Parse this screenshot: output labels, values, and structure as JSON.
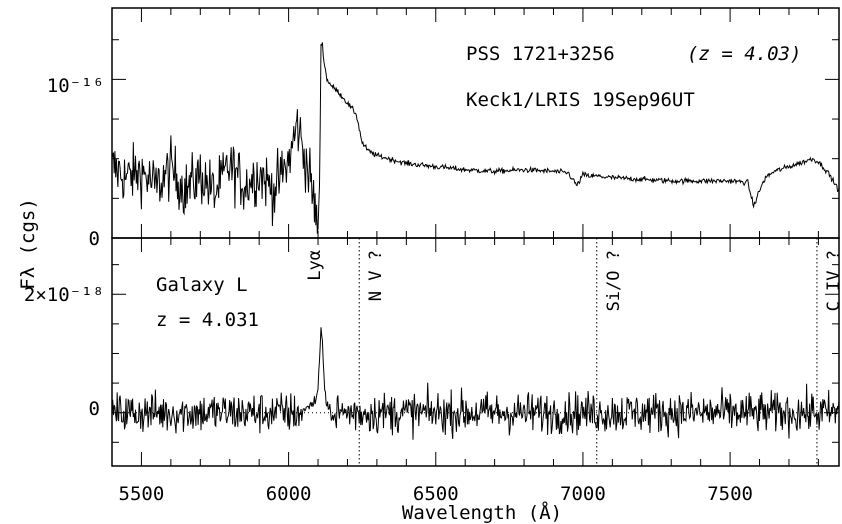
{
  "chart_data": [
    {
      "type": "line",
      "panel": "top",
      "title_line1": "PSS 1721+3256",
      "title_line2": "(z = 4.03)",
      "subtitle": "Keck1/LRIS 19Sep96UT",
      "ylabel": "Fλ (cgs)",
      "y_ticks": [
        {
          "value": 0,
          "label": "0"
        },
        {
          "value": 1,
          "label": "10⁻¹⁶"
        }
      ],
      "ylim": [
        0,
        1.45
      ],
      "xlim": [
        5400,
        7870
      ],
      "series": [
        {
          "x": [
            5400,
            5450,
            5500,
            5550,
            5600,
            5650,
            5700,
            5750,
            5800,
            5850,
            5900,
            5950,
            6000,
            6030,
            6050,
            6070,
            6085,
            6100,
            6106,
            6110,
            6115,
            6120,
            6130,
            6150,
            6170,
            6200,
            6230,
            6250,
            6270,
            6300,
            6400,
            6500,
            6600,
            6700,
            6800,
            6900,
            6950,
            6980,
            7000,
            7020,
            7050,
            7100,
            7200,
            7300,
            7400,
            7500,
            7560,
            7580,
            7600,
            7620,
            7650,
            7700,
            7750,
            7780,
            7800,
            7830,
            7870
          ],
          "y": [
            0.45,
            0.38,
            0.42,
            0.32,
            0.44,
            0.3,
            0.4,
            0.28,
            0.46,
            0.33,
            0.41,
            0.3,
            0.48,
            0.72,
            0.55,
            0.4,
            0.25,
            0.05,
            0.4,
            1.22,
            1.22,
            1.12,
            1.0,
            0.95,
            0.92,
            0.85,
            0.78,
            0.6,
            0.55,
            0.52,
            0.47,
            0.45,
            0.43,
            0.42,
            0.43,
            0.42,
            0.41,
            0.33,
            0.4,
            0.39,
            0.39,
            0.38,
            0.37,
            0.36,
            0.36,
            0.36,
            0.35,
            0.2,
            0.3,
            0.38,
            0.42,
            0.45,
            0.48,
            0.5,
            0.48,
            0.42,
            0.3
          ]
        }
      ]
    },
    {
      "type": "line",
      "panel": "bottom",
      "annotation_name": "Galaxy L",
      "annotation_z": "z = 4.031",
      "xlabel": "Wavelength (Å)",
      "y_ticks": [
        {
          "value": 0,
          "label": "0"
        },
        {
          "value": 2,
          "label": "2×10⁻¹⁸"
        }
      ],
      "ylim": [
        -0.9,
        2.95
      ],
      "xlim": [
        5400,
        7870
      ],
      "x_ticks": [
        5500,
        6000,
        6500,
        7000,
        7500
      ],
      "x_tick_labels": [
        "5500",
        "6000",
        "6500",
        "7000",
        "7500"
      ],
      "line_markers": [
        {
          "x": 6113,
          "label": "Lyα",
          "dotted": false
        },
        {
          "x": 6240,
          "label": "N V ?",
          "dotted": true
        },
        {
          "x": 7047,
          "label": "Si/O ?",
          "dotted": true
        },
        {
          "x": 7795,
          "label": "C IV ?",
          "dotted": true
        }
      ],
      "series": [
        {
          "x": [
            6060,
            6090,
            6100,
            6105,
            6110,
            6115,
            6120,
            6125,
            6130,
            6140,
            6160
          ],
          "y": [
            0.1,
            0.2,
            0.4,
            0.9,
            1.5,
            1.15,
            0.6,
            0.25,
            0.1,
            0.0,
            -0.1
          ]
        }
      ],
      "noise_sigma": 0.25,
      "zero_line": true
    }
  ]
}
